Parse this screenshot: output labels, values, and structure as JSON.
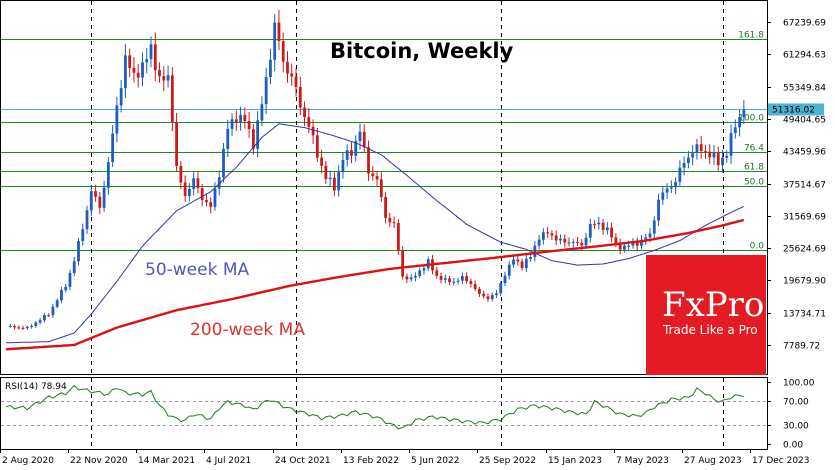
{
  "chart_data": {
    "type": "candlestick",
    "title": "Bitcoin, Weekly",
    "timeframe": "Weekly",
    "y_axis": {
      "range": [
        5000,
        69500
      ],
      "tick_labels": [
        "67239.69",
        "61294.63",
        "55349.84",
        "49404.65",
        "43459.96",
        "37514.67",
        "31569.69",
        "25624.69",
        "19679.90",
        "13734.71",
        "7789.72"
      ],
      "tick_values": [
        67239.69,
        61294.63,
        55349.84,
        49404.65,
        43459.96,
        37514.67,
        31569.69,
        25624.69,
        19679.9,
        13734.71,
        7789.72
      ]
    },
    "x_axis": {
      "tick_labels": [
        "2 Aug 2020",
        "22 Nov 2020",
        "14 Mar 2021",
        "4 Jul 2021",
        "24 Oct 2021",
        "13 Feb 2022",
        "5 Jun 2022",
        "25 Sep 2022",
        "15 Jan 2023",
        "7 May 2023",
        "27 Aug 2023",
        "17 Dec 2023"
      ]
    },
    "current_price": "51316.02",
    "current_price_value": 51316.02,
    "fibonacci_levels": [
      {
        "label": "161.8",
        "value": 64100
      },
      {
        "label": "100.0",
        "value": 48900
      },
      {
        "label": "76.4",
        "value": 43300
      },
      {
        "label": "61.8",
        "value": 39800
      },
      {
        "label": "50.0",
        "value": 37000
      },
      {
        "label": "0.0",
        "value": 25300
      }
    ],
    "price_anchors": [
      [
        0,
        11200
      ],
      [
        5,
        10900
      ],
      [
        10,
        13500
      ],
      [
        14,
        18800
      ],
      [
        16,
        23300
      ],
      [
        18,
        29500
      ],
      [
        20,
        36000
      ],
      [
        22,
        33300
      ],
      [
        24,
        41000
      ],
      [
        26,
        52000
      ],
      [
        28,
        60000
      ],
      [
        30,
        57800
      ],
      [
        32,
        58500
      ],
      [
        34,
        63000
      ],
      [
        36,
        56000
      ],
      [
        38,
        57500
      ],
      [
        39,
        49500
      ],
      [
        40,
        40000
      ],
      [
        42,
        35500
      ],
      [
        44,
        38000
      ],
      [
        46,
        35000
      ],
      [
        48,
        33000
      ],
      [
        50,
        39500
      ],
      [
        52,
        47500
      ],
      [
        54,
        50000
      ],
      [
        56,
        49000
      ],
      [
        58,
        45000
      ],
      [
        60,
        52000
      ],
      [
        62,
        61500
      ],
      [
        63,
        66500
      ],
      [
        65,
        60000
      ],
      [
        67,
        57000
      ],
      [
        69,
        52000
      ],
      [
        71,
        48000
      ],
      [
        73,
        43000
      ],
      [
        75,
        38500
      ],
      [
        77,
        37000
      ],
      [
        79,
        42000
      ],
      [
        81,
        43500
      ],
      [
        83,
        47000
      ],
      [
        85,
        40000
      ],
      [
        87,
        38000
      ],
      [
        89,
        31500
      ],
      [
        91,
        29800
      ],
      [
        93,
        20500
      ],
      [
        95,
        19800
      ],
      [
        97,
        21500
      ],
      [
        99,
        23000
      ],
      [
        101,
        20500
      ],
      [
        103,
        19600
      ],
      [
        105,
        19500
      ],
      [
        107,
        20100
      ],
      [
        109,
        19200
      ],
      [
        111,
        17000
      ],
      [
        113,
        16500
      ],
      [
        115,
        17200
      ],
      [
        117,
        21000
      ],
      [
        119,
        23500
      ],
      [
        121,
        22500
      ],
      [
        123,
        24000
      ],
      [
        125,
        27800
      ],
      [
        127,
        28300
      ],
      [
        129,
        27500
      ],
      [
        131,
        26500
      ],
      [
        133,
        27000
      ],
      [
        135,
        25800
      ],
      [
        137,
        30100
      ],
      [
        139,
        29800
      ],
      [
        141,
        29300
      ],
      [
        143,
        26000
      ],
      [
        145,
        25900
      ],
      [
        147,
        26300
      ],
      [
        149,
        27000
      ],
      [
        151,
        28000
      ],
      [
        153,
        34500
      ],
      [
        155,
        36500
      ],
      [
        157,
        38000
      ],
      [
        159,
        41500
      ],
      [
        161,
        43500
      ],
      [
        163,
        44000
      ],
      [
        165,
        42800
      ],
      [
        167,
        41500
      ],
      [
        169,
        43000
      ],
      [
        171,
        48500
      ],
      [
        173,
        51300
      ]
    ],
    "series": [
      {
        "name": "50-week MA",
        "color": "#3333aa",
        "label_color": "#5555bb",
        "points": [
          [
            0,
            8200
          ],
          [
            10,
            8400
          ],
          [
            16,
            10000
          ],
          [
            20,
            13500
          ],
          [
            26,
            19500
          ],
          [
            32,
            26000
          ],
          [
            40,
            32500
          ],
          [
            48,
            36000
          ],
          [
            54,
            40500
          ],
          [
            60,
            46000
          ],
          [
            64,
            48500
          ],
          [
            70,
            47800
          ],
          [
            76,
            46500
          ],
          [
            82,
            45000
          ],
          [
            88,
            42800
          ],
          [
            94,
            39000
          ],
          [
            100,
            35000
          ],
          [
            108,
            30000
          ],
          [
            116,
            26700
          ],
          [
            122,
            25400
          ],
          [
            128,
            23300
          ],
          [
            134,
            22500
          ],
          [
            140,
            22700
          ],
          [
            146,
            23700
          ],
          [
            152,
            25200
          ],
          [
            158,
            27000
          ],
          [
            164,
            29800
          ],
          [
            170,
            32200
          ],
          [
            173,
            33300
          ]
        ]
      },
      {
        "name": "200-week MA",
        "color": "#dd1111",
        "label_color": "#dd3333",
        "points": [
          [
            0,
            7000
          ],
          [
            16,
            7800
          ],
          [
            26,
            11000
          ],
          [
            40,
            14200
          ],
          [
            54,
            16400
          ],
          [
            66,
            18600
          ],
          [
            78,
            20300
          ],
          [
            90,
            21800
          ],
          [
            102,
            22800
          ],
          [
            114,
            23800
          ],
          [
            126,
            24900
          ],
          [
            138,
            25900
          ],
          [
            150,
            27000
          ],
          [
            160,
            28400
          ],
          [
            168,
            29800
          ],
          [
            173,
            30800
          ]
        ]
      }
    ],
    "annotations": {
      "ma50": "50-week MA",
      "ma200": "200-week MA"
    },
    "rsi": {
      "label": "RSI(14) 78.94",
      "period": 14,
      "last_value": 78.94,
      "levels": [
        70,
        30
      ],
      "tick_labels": [
        "100.00",
        "70.00",
        "30.00",
        "0.00"
      ],
      "tick_values": [
        100,
        70,
        30,
        0
      ],
      "anchors": [
        [
          0,
          60
        ],
        [
          5,
          58
        ],
        [
          10,
          75
        ],
        [
          14,
          82
        ],
        [
          16,
          92
        ],
        [
          18,
          88
        ],
        [
          20,
          85
        ],
        [
          24,
          80
        ],
        [
          26,
          92
        ],
        [
          28,
          82
        ],
        [
          32,
          80
        ],
        [
          34,
          84
        ],
        [
          36,
          62
        ],
        [
          38,
          48
        ],
        [
          40,
          40
        ],
        [
          42,
          38
        ],
        [
          44,
          48
        ],
        [
          46,
          45
        ],
        [
          48,
          40
        ],
        [
          50,
          58
        ],
        [
          52,
          68
        ],
        [
          56,
          62
        ],
        [
          58,
          55
        ],
        [
          60,
          65
        ],
        [
          62,
          72
        ],
        [
          63,
          68
        ],
        [
          66,
          58
        ],
        [
          70,
          50
        ],
        [
          74,
          42
        ],
        [
          78,
          45
        ],
        [
          82,
          52
        ],
        [
          86,
          45
        ],
        [
          88,
          40
        ],
        [
          90,
          32
        ],
        [
          93,
          25
        ],
        [
          96,
          38
        ],
        [
          100,
          44
        ],
        [
          104,
          40
        ],
        [
          108,
          36
        ],
        [
          112,
          34
        ],
        [
          116,
          40
        ],
        [
          120,
          56
        ],
        [
          124,
          62
        ],
        [
          128,
          58
        ],
        [
          132,
          52
        ],
        [
          136,
          48
        ],
        [
          138,
          68
        ],
        [
          140,
          62
        ],
        [
          144,
          48
        ],
        [
          148,
          45
        ],
        [
          150,
          50
        ],
        [
          152,
          60
        ],
        [
          156,
          72
        ],
        [
          160,
          75
        ],
        [
          162,
          88
        ],
        [
          164,
          82
        ],
        [
          166,
          72
        ],
        [
          168,
          68
        ],
        [
          170,
          76
        ],
        [
          173,
          79
        ]
      ]
    },
    "legend": "none",
    "grid": false
  },
  "brand": {
    "name": "FxPro",
    "tagline": "Trade Like a Pro",
    "color": "#e51b24"
  },
  "colors": {
    "up": "#1c5dc2",
    "down": "#cc1a1a",
    "fib": "#1f8a1f",
    "price_line": "#4fb0d0",
    "rsi": "#1e7a1e"
  }
}
